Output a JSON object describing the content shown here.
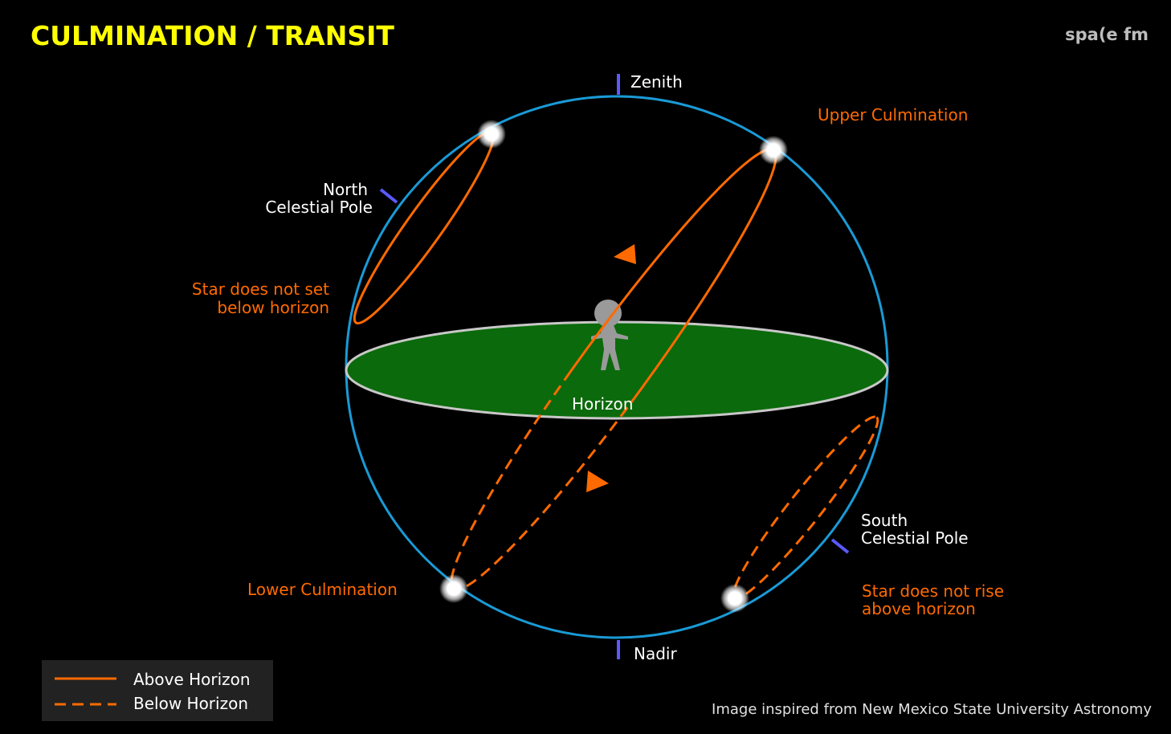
{
  "header": {
    "title": "CULMINATION / TRANSIT",
    "brand": "spa(e fm"
  },
  "labels": {
    "zenith": "Zenith",
    "nadir": "Nadir",
    "horizon": "Horizon",
    "upper_culmination": "Upper Culmination",
    "lower_culmination": "Lower  Culmination",
    "north_celestial_pole": [
      "North",
      "Celestial Pole"
    ],
    "south_celestial_pole": [
      "South",
      "Celestial Pole"
    ],
    "star_not_set": [
      "Star does not set",
      "below horizon"
    ],
    "star_not_rise": [
      "Star does not rise",
      "above horizon"
    ]
  },
  "legend": [
    "Above Horizon",
    "Below Horizon"
  ],
  "credit": "Image inspired from New Mexico State University Astronomy"
}
